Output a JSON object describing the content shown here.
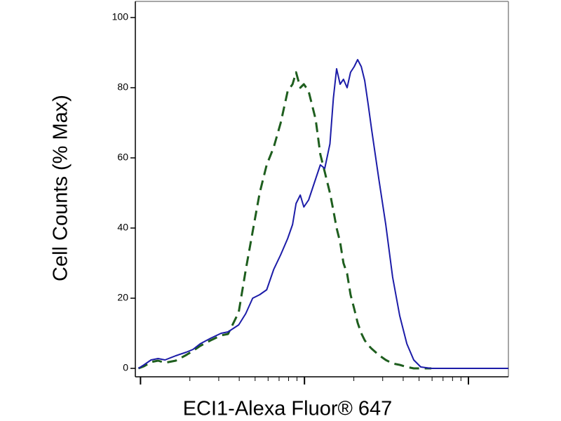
{
  "chart_data": {
    "type": "line",
    "xlabel": "ECI1-Alexa Fluor® 647",
    "ylabel": "Cell Counts (% Max)",
    "xscale": "log",
    "xlim": [
      9.3,
      1753
    ],
    "xticks": [
      10,
      100,
      1000
    ],
    "xminorticks": [
      20,
      30,
      40,
      50,
      60,
      70,
      80,
      90,
      200,
      300,
      400,
      500,
      600,
      700,
      800,
      900
    ],
    "ylim": [
      -2.4,
      104.6
    ],
    "yticks": [
      0,
      20,
      40,
      60,
      80,
      100
    ],
    "grid": false,
    "x": [
      9.71,
      10.5,
      11.6,
      12.8,
      14.1,
      16.4,
      19.0,
      20.9,
      23.1,
      26.8,
      31.0,
      34.2,
      39.7,
      43.8,
      48.3,
      53.3,
      58.8,
      64.9,
      71.6,
      79.0,
      84.6,
      88.9,
      94.3,
      99.1,
      106,
      117,
      125,
      133,
      143,
      150,
      157,
      165,
      173,
      182,
      191,
      201,
      211,
      222,
      233,
      245,
      257,
      284,
      313,
      345,
      381,
      421,
      464,
      512,
      594,
      838,
      1371,
      1753
    ],
    "series": [
      {
        "color": "#1c1ca8",
        "line_style": "solid",
        "values": [
          0,
          1,
          2.4,
          2.8,
          2.4,
          3.6,
          4.6,
          5.4,
          7,
          8.6,
          10,
          10.4,
          12.4,
          15.6,
          20,
          21,
          22.4,
          28.2,
          32.4,
          37,
          41,
          47,
          49.4,
          46,
          48,
          54,
          58,
          57,
          64,
          77,
          85.4,
          81,
          82.4,
          80,
          84.4,
          86,
          88,
          86,
          82,
          75,
          68,
          54,
          41,
          26,
          15,
          7,
          2.4,
          0.4,
          0,
          0,
          0,
          0
        ]
      },
      {
        "color": "#1e5e1e",
        "line_style": "dashed",
        "values": [
          0,
          0.6,
          1.8,
          2.2,
          1.6,
          2.2,
          3.8,
          5,
          6.4,
          8,
          9.4,
          9.8,
          16,
          28,
          39,
          50,
          58,
          63,
          70,
          79,
          81,
          84.4,
          80,
          81,
          79,
          71,
          61,
          56,
          50,
          45,
          40,
          36,
          30,
          27,
          21,
          17,
          13,
          10,
          8,
          6.6,
          5.6,
          3.8,
          2.4,
          1.4,
          1,
          0.4,
          0,
          0,
          0,
          null,
          null,
          null
        ]
      }
    ]
  }
}
